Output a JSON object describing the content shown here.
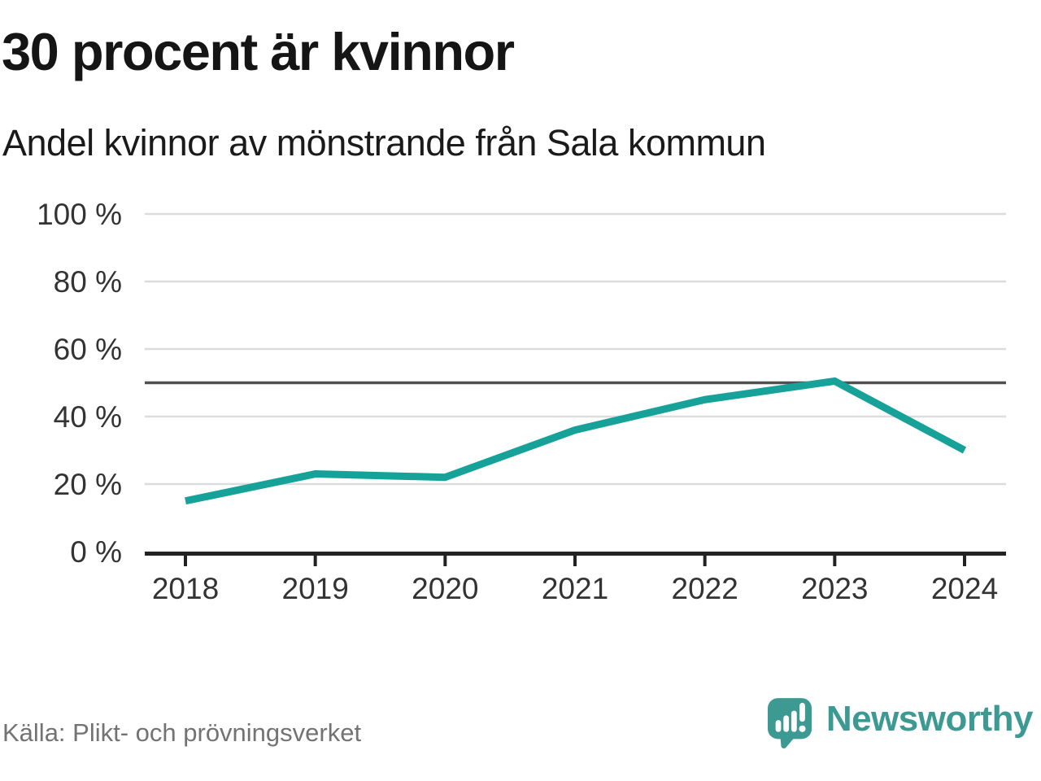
{
  "chart_data": {
    "type": "line",
    "title": "30 procent är kvinnor",
    "subtitle": "Andel kvinnor av mönstrande från Sala kommun",
    "x": [
      "2018",
      "2019",
      "2020",
      "2021",
      "2022",
      "2023",
      "2024"
    ],
    "series": [
      {
        "name": "Andel kvinnor",
        "values": [
          15,
          23,
          22,
          36,
          45,
          50.5,
          30
        ]
      }
    ],
    "ylim": [
      0,
      100
    ],
    "yticks": [
      0,
      20,
      40,
      60,
      80,
      100
    ],
    "ytick_suffix": " %",
    "grid": true,
    "legend": "none",
    "reference_line": {
      "value": 50
    },
    "colors": {
      "line": "#16A199",
      "grid": "#DCDCDC",
      "reference": "#505050",
      "axis": "#222222",
      "tick_label": "#333333"
    }
  },
  "footer": {
    "source": "Källa: Plikt- och prövningsverket",
    "logo_text": "Newsworthy",
    "logo_color": "#3D9A93"
  }
}
